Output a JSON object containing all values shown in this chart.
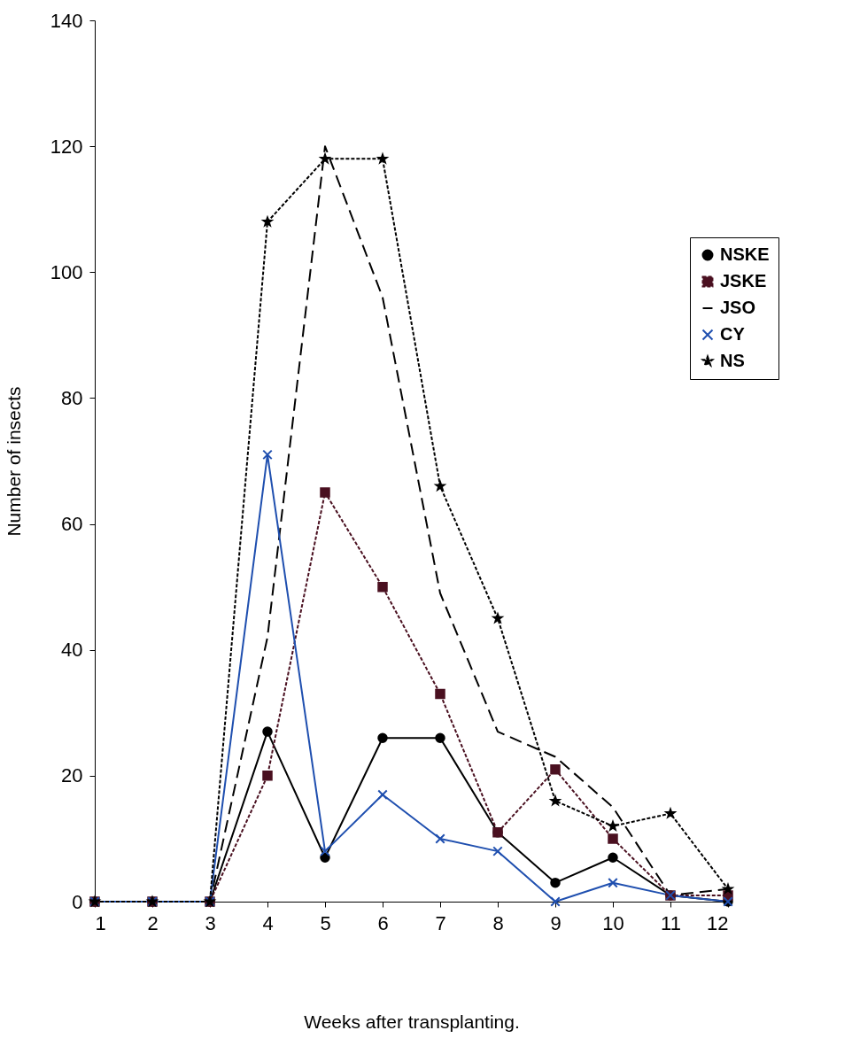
{
  "chart_data": {
    "type": "line",
    "xlabel": "Weeks after transplanting.",
    "ylabel": "Number of insects",
    "x": [
      1,
      2,
      3,
      4,
      5,
      6,
      7,
      8,
      9,
      10,
      11,
      12
    ],
    "xlim": [
      1,
      12
    ],
    "xticks": [
      1,
      2,
      3,
      4,
      5,
      6,
      7,
      8,
      9,
      10,
      11,
      12
    ],
    "ylim": [
      0,
      140
    ],
    "yticks": [
      0,
      20,
      40,
      60,
      80,
      100,
      120,
      140
    ],
    "legend": "right",
    "series": [
      {
        "name": "NSKE",
        "color": "#000000",
        "marker": "circle",
        "line_style": "solid",
        "values": [
          0,
          0,
          0,
          27,
          7,
          26,
          26,
          11,
          3,
          7,
          1,
          0
        ]
      },
      {
        "name": "JSKE",
        "color": "#4a1020",
        "marker": "square",
        "line_style": "dotted",
        "values": [
          0,
          0,
          0,
          20,
          65,
          50,
          33,
          11,
          21,
          10,
          1,
          1
        ]
      },
      {
        "name": "JSO",
        "color": "#000000",
        "marker": "none",
        "line_style": "dashed",
        "values": [
          0,
          0,
          0,
          42,
          120,
          96,
          49,
          27,
          23,
          15,
          1,
          2
        ]
      },
      {
        "name": "CY",
        "color": "#1f4faf",
        "marker": "cross",
        "line_style": "solid",
        "values": [
          0,
          0,
          0,
          71,
          8,
          17,
          10,
          8,
          0,
          3,
          1,
          0
        ]
      },
      {
        "name": "NS",
        "color": "#000000",
        "marker": "star",
        "line_style": "dotted",
        "values": [
          0,
          0,
          0,
          108,
          118,
          118,
          66,
          45,
          16,
          12,
          14,
          2
        ]
      }
    ]
  }
}
